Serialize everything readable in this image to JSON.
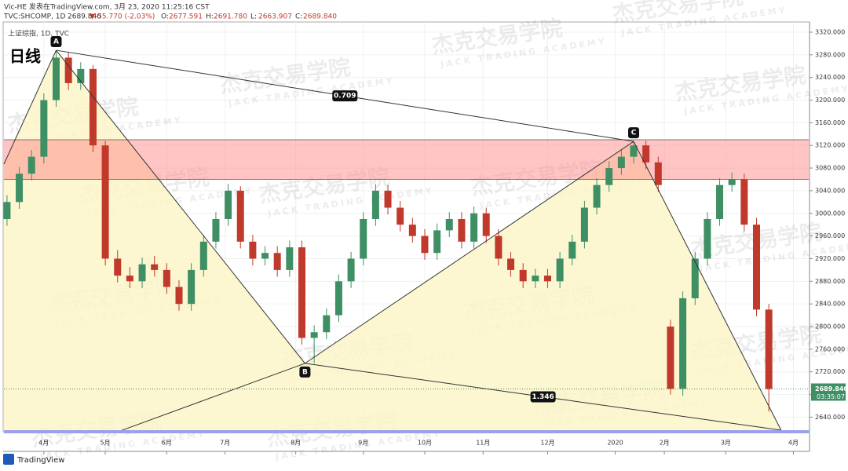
{
  "header": {
    "line1": "Vic-HE 发表在TradingView.com, 3月 23, 2020 11:25:16 CST",
    "symbol": "TVC:SHCOMP, 1D",
    "last": "2689.840",
    "change": "▼-55.770 (-2.03%)",
    "ohlc": [
      {
        "k": "O:",
        "v": "2677.591"
      },
      {
        "k": "H:",
        "v": "2691.780"
      },
      {
        "k": "L:",
        "v": "2663.907"
      },
      {
        "k": "C:",
        "v": "2689.840"
      }
    ]
  },
  "legend": "上证综指, 1D, TVC",
  "footer": "TradingView",
  "watermark": {
    "title": "杰克交易学院",
    "subtitle": "JACK TRADING ACADEMY"
  },
  "chart_data": {
    "type": "candlestick",
    "title": "日线",
    "up_color": "#3f8f65",
    "down_color": "#c0392b",
    "x": [
      1,
      5,
      9,
      13,
      17,
      21,
      25,
      29,
      33,
      37,
      41,
      45,
      49,
      53,
      57,
      61,
      65,
      69,
      73,
      77,
      81,
      85,
      89,
      93,
      97,
      101,
      105,
      109,
      113,
      117,
      121,
      125,
      129,
      133,
      137,
      141,
      145,
      149,
      153,
      157,
      161,
      165,
      169,
      173,
      177,
      181,
      185,
      189,
      193,
      197,
      201,
      205,
      209,
      213,
      217,
      221,
      225,
      229,
      233,
      237,
      241,
      245,
      249
    ],
    "open": [
      2990,
      3020,
      3070,
      3100,
      3200,
      3275,
      3230,
      3255,
      3120,
      2920,
      2890,
      2880,
      2910,
      2900,
      2870,
      2840,
      2900,
      2950,
      2990,
      3040,
      2950,
      2920,
      2930,
      2900,
      2940,
      2780,
      2790,
      2820,
      2880,
      2920,
      2990,
      3040,
      3010,
      2980,
      2960,
      2930,
      2970,
      2990,
      2950,
      3000,
      2960,
      2920,
      2900,
      2880,
      2890,
      2880,
      2920,
      2950,
      3010,
      3050,
      3080,
      3100,
      3120,
      3090,
      2800,
      2690,
      2850,
      2920,
      2990,
      3050,
      3060,
      2980,
      2830
    ],
    "high": [
      3032,
      3082,
      3112,
      3212,
      3288,
      3285,
      3267,
      3262,
      3128,
      2935,
      2905,
      2922,
      2925,
      2912,
      2882,
      2912,
      2962,
      3002,
      3052,
      3048,
      2962,
      2942,
      2942,
      2952,
      2952,
      2802,
      2832,
      2892,
      2932,
      3002,
      3052,
      3050,
      3022,
      2992,
      2972,
      2982,
      3002,
      3002,
      3012,
      3010,
      2972,
      2932,
      2912,
      2902,
      2902,
      2932,
      2962,
      3022,
      3062,
      3092,
      3112,
      3127,
      3128,
      3100,
      2812,
      2862,
      2932,
      3002,
      3062,
      3072,
      3070,
      2992,
      2840
    ],
    "low": [
      2978,
      3008,
      3058,
      3088,
      3188,
      3218,
      3218,
      3108,
      2908,
      2878,
      2868,
      2868,
      2888,
      2858,
      2828,
      2828,
      2888,
      2938,
      2978,
      2938,
      2908,
      2908,
      2888,
      2888,
      2768,
      2735,
      2778,
      2808,
      2868,
      2908,
      2978,
      2998,
      2968,
      2948,
      2918,
      2918,
      2958,
      2938,
      2938,
      2948,
      2908,
      2888,
      2868,
      2868,
      2868,
      2868,
      2908,
      2938,
      2998,
      3038,
      3068,
      3088,
      3078,
      3038,
      2680,
      2678,
      2838,
      2908,
      2978,
      3038,
      2968,
      2818,
      2650
    ],
    "close": [
      3020,
      3070,
      3100,
      3200,
      3275,
      3230,
      3255,
      3120,
      2920,
      2890,
      2880,
      2910,
      2900,
      2870,
      2840,
      2900,
      2950,
      2990,
      3040,
      2950,
      2920,
      2930,
      2900,
      2940,
      2780,
      2790,
      2820,
      2880,
      2920,
      2990,
      3040,
      3010,
      2980,
      2960,
      2930,
      2970,
      2990,
      2950,
      3000,
      2960,
      2920,
      2900,
      2880,
      2890,
      2880,
      2920,
      2950,
      3010,
      3050,
      3080,
      3100,
      3120,
      3090,
      3050,
      2690,
      2850,
      2920,
      2990,
      3050,
      3060,
      2980,
      2830,
      2689.84
    ],
    "xlim": [
      0,
      262
    ],
    "xticks": [
      {
        "value": 13,
        "label": "4月"
      },
      {
        "value": 33,
        "label": "5月"
      },
      {
        "value": 53,
        "label": "6月"
      },
      {
        "value": 72,
        "label": "7月"
      },
      {
        "value": 95,
        "label": "8月"
      },
      {
        "value": 117,
        "label": "9月"
      },
      {
        "value": 137,
        "label": "10月"
      },
      {
        "value": 156,
        "label": "11月"
      },
      {
        "value": 177,
        "label": "12月"
      },
      {
        "value": 199,
        "label": "2020"
      },
      {
        "value": 215,
        "label": "2月"
      },
      {
        "value": 235,
        "label": "3月"
      },
      {
        "value": 257,
        "label": "4月"
      }
    ],
    "ylim": [
      2617,
      3338
    ],
    "yticks": [
      {
        "value": 2640,
        "label": "2640.000"
      },
      {
        "value": 2680,
        "label": "2680.000"
      },
      {
        "value": 2720,
        "label": "2720.000"
      },
      {
        "value": 2760,
        "label": "2760.000"
      },
      {
        "value": 2800,
        "label": "2800.000"
      },
      {
        "value": 2840,
        "label": "2840.000"
      },
      {
        "value": 2880,
        "label": "2880.000"
      },
      {
        "value": 2920,
        "label": "2920.000"
      },
      {
        "value": 2960,
        "label": "2960.000"
      },
      {
        "value": 3000,
        "label": "3000.000"
      },
      {
        "value": 3040,
        "label": "3040.000"
      },
      {
        "value": 3080,
        "label": "3080.000"
      },
      {
        "value": 3120,
        "label": "3120.000"
      },
      {
        "value": 3160,
        "label": "3160.000"
      },
      {
        "value": 3200,
        "label": "3200.000"
      },
      {
        "value": 3240,
        "label": "3240.000"
      },
      {
        "value": 3280,
        "label": "3280.000"
      },
      {
        "value": 3320,
        "label": "3320.000"
      }
    ],
    "grid": true,
    "zone": [
      3060,
      3130
    ],
    "pattern": {
      "x": [
        0,
        17,
        98,
        205,
        253
      ],
      "y": [
        3087,
        3288,
        2735,
        3127,
        2617
      ]
    },
    "point_labels": [
      "A",
      "B",
      "C"
    ],
    "extra_leg": {
      "x": [
        37,
        98
      ],
      "y": [
        2614,
        2735
      ]
    },
    "ratios": [
      0.709,
      1.346
    ],
    "last_price": {
      "value": 2689.84,
      "label": "2689.840",
      "timer": "03:35:07"
    }
  }
}
